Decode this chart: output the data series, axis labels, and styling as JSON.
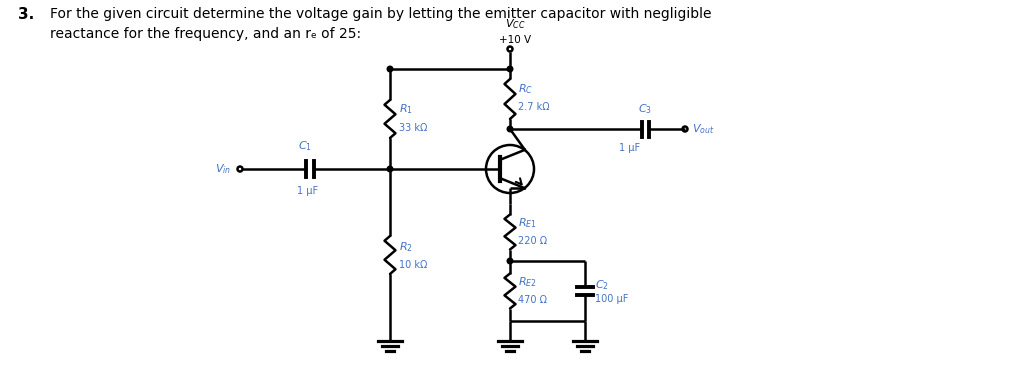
{
  "title_number": "3.",
  "title_line1": "For the given circuit determine the voltage gain by letting the emitter capacitor with negligible",
  "title_line2": "reactance for the frequency, and an rₑ of 25:",
  "vcc_label": "V_{CC}",
  "vcc_value": "+10 V",
  "rc_label": "R_C",
  "rc_value": "2.7 kΩ",
  "c3_label": "C_3",
  "c3_value": "1 μF",
  "vout_label": "V_{out}",
  "r1_label": "R_1",
  "r1_value": "33 kΩ",
  "c1_label": "C_1",
  "c1_value": "1 μF",
  "vin_label": "V_{in}",
  "re1_label": "R_{E1}",
  "re1_value": "220 Ω",
  "r2_label": "R_2",
  "r2_value": "10 kΩ",
  "re2_label": "R_{E2}",
  "re2_value": "470 Ω",
  "c2_label": "C_2",
  "c2_value": "100 μF",
  "line_color": "#000000",
  "text_color": "#000000",
  "label_color": "#4472C4",
  "background_color": "#ffffff",
  "line_width": 1.8,
  "fig_width": 10.17,
  "fig_height": 3.79,
  "dpi": 100
}
